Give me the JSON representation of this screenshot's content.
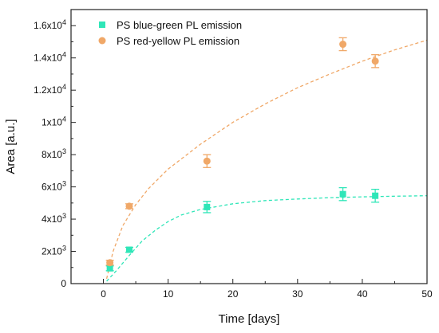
{
  "chart_data": {
    "type": "scatter",
    "title": "",
    "xlabel": "Time [days]",
    "ylabel": "Area [a.u.]",
    "xlim": [
      -5,
      50
    ],
    "ylim": [
      0,
      17000
    ],
    "x_ticks": [
      0,
      10,
      20,
      30,
      40,
      50
    ],
    "x_tick_labels": [
      "0",
      "10",
      "20",
      "30",
      "40",
      "50"
    ],
    "y_ticks": [
      {
        "value": 0,
        "label": "0",
        "exp": ""
      },
      {
        "value": 2000,
        "label": "2x10",
        "exp": "3"
      },
      {
        "value": 4000,
        "label": "4x10",
        "exp": "3"
      },
      {
        "value": 6000,
        "label": "6x10",
        "exp": "3"
      },
      {
        "value": 8000,
        "label": "8x10",
        "exp": "3"
      },
      {
        "value": 10000,
        "label": "1x10",
        "exp": "4"
      },
      {
        "value": 12000,
        "label": "1.2x10",
        "exp": "4"
      },
      {
        "value": 14000,
        "label": "1.4x10",
        "exp": "4"
      },
      {
        "value": 16000,
        "label": "1.6x10",
        "exp": "4"
      }
    ],
    "grid": false,
    "legend_position": "top-left",
    "series": [
      {
        "name": "PS blue-green PL emission",
        "marker": "square",
        "color": "#2fe6b8",
        "points": [
          {
            "x": 1,
            "y": 950,
            "err": 150
          },
          {
            "x": 4,
            "y": 2100,
            "err": 150
          },
          {
            "x": 16,
            "y": 4750,
            "err": 350
          },
          {
            "x": 37,
            "y": 5550,
            "err": 400
          },
          {
            "x": 42,
            "y": 5450,
            "err": 400
          }
        ],
        "fit": [
          {
            "x": 0.5,
            "y": 150
          },
          {
            "x": 2,
            "y": 800
          },
          {
            "x": 4,
            "y": 1750
          },
          {
            "x": 6,
            "y": 2650
          },
          {
            "x": 8,
            "y": 3300
          },
          {
            "x": 10,
            "y": 3850
          },
          {
            "x": 12,
            "y": 4250
          },
          {
            "x": 15,
            "y": 4600
          },
          {
            "x": 20,
            "y": 4950
          },
          {
            "x": 25,
            "y": 5150
          },
          {
            "x": 30,
            "y": 5250
          },
          {
            "x": 35,
            "y": 5330
          },
          {
            "x": 40,
            "y": 5380
          },
          {
            "x": 45,
            "y": 5420
          },
          {
            "x": 50,
            "y": 5450
          }
        ]
      },
      {
        "name": "PS red-yellow PL emission",
        "marker": "circle",
        "color": "#f0a868",
        "points": [
          {
            "x": 1,
            "y": 1300,
            "err": 150
          },
          {
            "x": 4,
            "y": 4800,
            "err": 150
          },
          {
            "x": 16,
            "y": 7600,
            "err": 400
          },
          {
            "x": 37,
            "y": 14850,
            "err": 400
          },
          {
            "x": 42,
            "y": 13800,
            "err": 400
          }
        ],
        "fit": [
          {
            "x": 0.5,
            "y": 300
          },
          {
            "x": 1.5,
            "y": 2000
          },
          {
            "x": 3,
            "y": 3600
          },
          {
            "x": 5,
            "y": 4900
          },
          {
            "x": 7,
            "y": 5900
          },
          {
            "x": 10,
            "y": 7100
          },
          {
            "x": 15,
            "y": 8650
          },
          {
            "x": 20,
            "y": 10000
          },
          {
            "x": 25,
            "y": 11150
          },
          {
            "x": 30,
            "y": 12150
          },
          {
            "x": 35,
            "y": 13000
          },
          {
            "x": 40,
            "y": 13800
          },
          {
            "x": 45,
            "y": 14500
          },
          {
            "x": 50,
            "y": 15100
          }
        ]
      }
    ]
  }
}
